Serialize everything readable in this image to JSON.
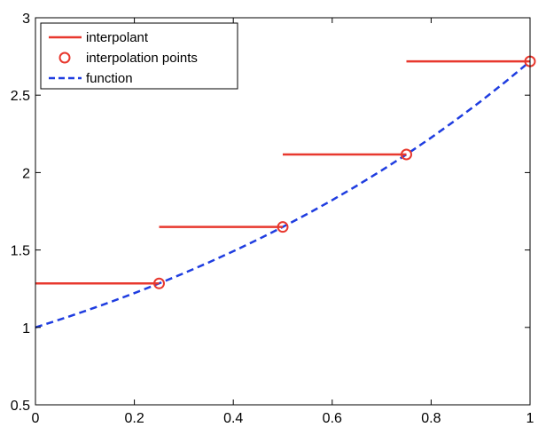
{
  "chart_data": {
    "type": "line",
    "title": "",
    "xlabel": "",
    "ylabel": "",
    "xlim": [
      0,
      1
    ],
    "ylim": [
      0.5,
      3
    ],
    "xticks": [
      "0",
      "0.2",
      "0.4",
      "0.6",
      "0.8",
      "1"
    ],
    "yticks": [
      "0.5",
      "1",
      "1.5",
      "2",
      "2.5",
      "3"
    ],
    "grid": false,
    "legend_position": "top-left",
    "series": [
      {
        "name": "interpolant",
        "style": "solid",
        "color": "#e8382e",
        "segments": [
          {
            "x": [
              0,
              0.25
            ],
            "y": [
              1.284,
              1.284
            ]
          },
          {
            "x": [
              0.25,
              0.5
            ],
            "y": [
              1.6487,
              1.6487
            ]
          },
          {
            "x": [
              0.5,
              0.75
            ],
            "y": [
              2.117,
              2.117
            ]
          },
          {
            "x": [
              0.75,
              1
            ],
            "y": [
              2.7183,
              2.7183
            ]
          }
        ]
      },
      {
        "name": "interpolation points",
        "style": "circle-markers",
        "color": "#e8382e",
        "x": [
          0.25,
          0.5,
          0.75,
          1
        ],
        "y": [
          1.284,
          1.6487,
          2.117,
          2.7183
        ]
      },
      {
        "name": "function",
        "style": "dashed",
        "color": "#1f3de0",
        "x": [
          0,
          0.05,
          0.1,
          0.15,
          0.2,
          0.25,
          0.3,
          0.35,
          0.4,
          0.45,
          0.5,
          0.55,
          0.6,
          0.65,
          0.7,
          0.75,
          0.8,
          0.85,
          0.9,
          0.95,
          1
        ],
        "y": [
          1.0,
          1.0513,
          1.1052,
          1.1618,
          1.2214,
          1.284,
          1.3499,
          1.4191,
          1.4918,
          1.5683,
          1.6487,
          1.7333,
          1.8221,
          1.9155,
          2.0138,
          2.117,
          2.2255,
          2.3396,
          2.4596,
          2.5857,
          2.7183
        ]
      }
    ]
  }
}
